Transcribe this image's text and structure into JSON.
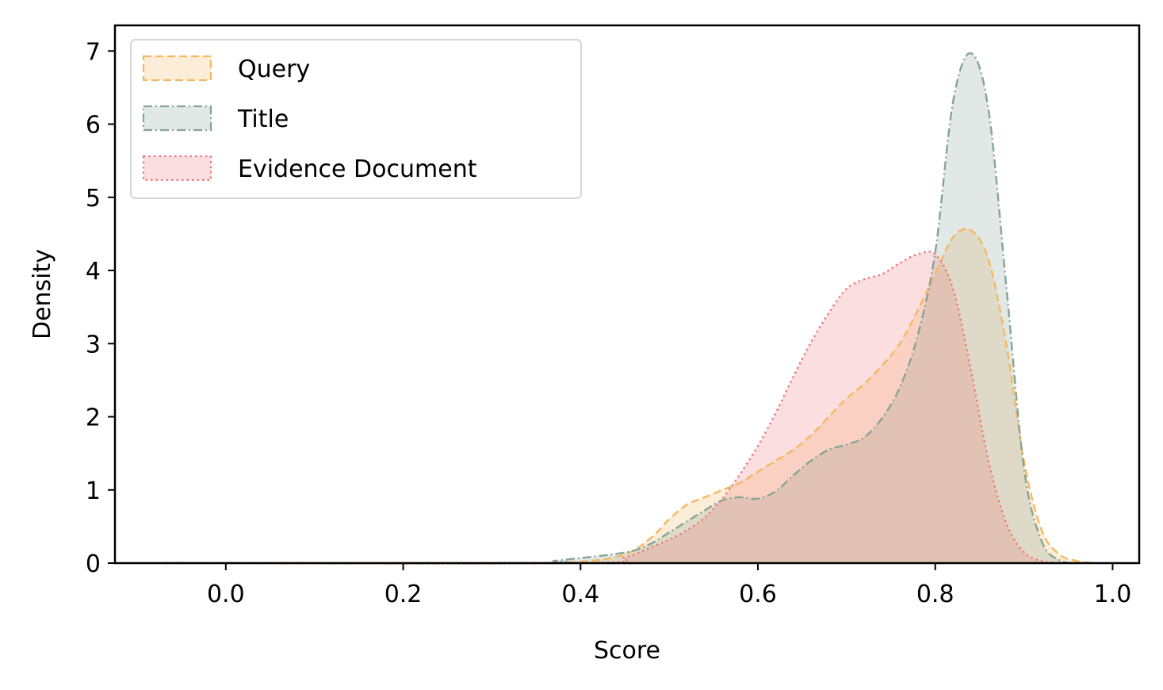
{
  "chart_data": {
    "type": "area",
    "xlabel": "Score",
    "ylabel": "Density",
    "xlim": [
      -0.125,
      1.03
    ],
    "ylim": [
      0,
      7.35
    ],
    "xticks": [
      0.0,
      0.2,
      0.4,
      0.6,
      0.8,
      1.0
    ],
    "xtick_labels": [
      "0.0",
      "0.2",
      "0.4",
      "0.6",
      "0.8",
      "1.0"
    ],
    "yticks": [
      0,
      1,
      2,
      3,
      4,
      5,
      6,
      7
    ],
    "ytick_labels": [
      "0",
      "1",
      "2",
      "3",
      "4",
      "5",
      "6",
      "7"
    ],
    "grid": false,
    "legend_position": "top-left",
    "series": [
      {
        "name": "Query",
        "color": "#f5b862",
        "line_style": "dashed",
        "points": [
          [
            -0.07,
            0
          ],
          [
            0.3,
            0
          ],
          [
            0.4,
            0.02
          ],
          [
            0.45,
            0.12
          ],
          [
            0.48,
            0.35
          ],
          [
            0.5,
            0.6
          ],
          [
            0.52,
            0.8
          ],
          [
            0.54,
            0.9
          ],
          [
            0.56,
            1.0
          ],
          [
            0.58,
            1.1
          ],
          [
            0.6,
            1.25
          ],
          [
            0.62,
            1.4
          ],
          [
            0.64,
            1.55
          ],
          [
            0.66,
            1.75
          ],
          [
            0.68,
            2.0
          ],
          [
            0.7,
            2.25
          ],
          [
            0.72,
            2.45
          ],
          [
            0.74,
            2.7
          ],
          [
            0.76,
            3.0
          ],
          [
            0.78,
            3.45
          ],
          [
            0.8,
            3.95
          ],
          [
            0.82,
            4.45
          ],
          [
            0.84,
            4.55
          ],
          [
            0.86,
            4.15
          ],
          [
            0.88,
            3.0
          ],
          [
            0.9,
            1.4
          ],
          [
            0.92,
            0.45
          ],
          [
            0.94,
            0.12
          ],
          [
            0.96,
            0.03
          ],
          [
            0.98,
            0
          ]
        ]
      },
      {
        "name": "Title",
        "color": "#86a596",
        "line_style": "dashdot",
        "points": [
          [
            -0.07,
            0
          ],
          [
            0.35,
            0
          ],
          [
            0.37,
            0.03
          ],
          [
            0.4,
            0.07
          ],
          [
            0.43,
            0.11
          ],
          [
            0.46,
            0.17
          ],
          [
            0.48,
            0.27
          ],
          [
            0.5,
            0.42
          ],
          [
            0.52,
            0.57
          ],
          [
            0.54,
            0.72
          ],
          [
            0.56,
            0.86
          ],
          [
            0.58,
            0.9
          ],
          [
            0.6,
            0.88
          ],
          [
            0.62,
            0.98
          ],
          [
            0.64,
            1.2
          ],
          [
            0.66,
            1.4
          ],
          [
            0.68,
            1.55
          ],
          [
            0.7,
            1.62
          ],
          [
            0.72,
            1.72
          ],
          [
            0.74,
            1.98
          ],
          [
            0.76,
            2.4
          ],
          [
            0.78,
            3.1
          ],
          [
            0.8,
            4.25
          ],
          [
            0.82,
            6.3
          ],
          [
            0.84,
            6.97
          ],
          [
            0.86,
            6.2
          ],
          [
            0.88,
            3.8
          ],
          [
            0.9,
            1.3
          ],
          [
            0.92,
            0.3
          ],
          [
            0.94,
            0.04
          ],
          [
            0.96,
            0
          ]
        ]
      },
      {
        "name": "Evidence Document",
        "color": "#ef7a7e",
        "line_style": "dotted",
        "points": [
          [
            -0.07,
            0
          ],
          [
            0.4,
            0
          ],
          [
            0.45,
            0.08
          ],
          [
            0.48,
            0.22
          ],
          [
            0.5,
            0.32
          ],
          [
            0.52,
            0.45
          ],
          [
            0.54,
            0.62
          ],
          [
            0.56,
            0.88
          ],
          [
            0.58,
            1.22
          ],
          [
            0.6,
            1.6
          ],
          [
            0.62,
            2.05
          ],
          [
            0.64,
            2.55
          ],
          [
            0.66,
            3.02
          ],
          [
            0.68,
            3.42
          ],
          [
            0.7,
            3.75
          ],
          [
            0.72,
            3.88
          ],
          [
            0.74,
            3.95
          ],
          [
            0.76,
            4.1
          ],
          [
            0.78,
            4.22
          ],
          [
            0.8,
            4.22
          ],
          [
            0.82,
            3.75
          ],
          [
            0.84,
            2.65
          ],
          [
            0.86,
            1.4
          ],
          [
            0.88,
            0.55
          ],
          [
            0.9,
            0.15
          ],
          [
            0.92,
            0.03
          ],
          [
            0.94,
            0
          ]
        ]
      }
    ]
  }
}
